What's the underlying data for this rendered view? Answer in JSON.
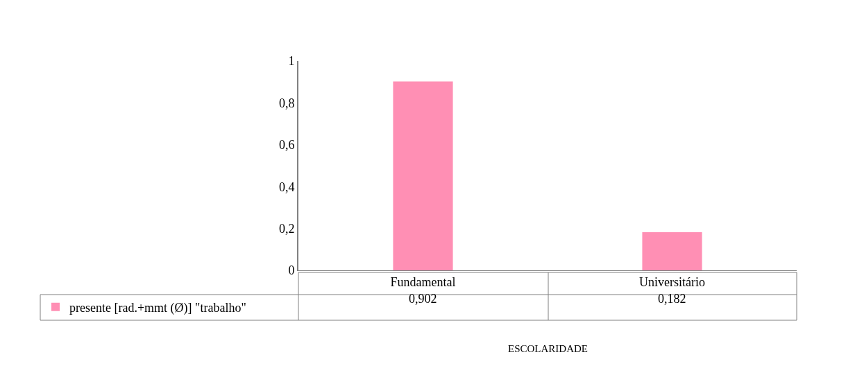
{
  "chart_data": {
    "type": "bar",
    "annotations": [
      "ESCOLARIDADE"
    ],
    "categories": [
      "Fundamental",
      "Universitário"
    ],
    "series": [
      {
        "name": "presente [rad.+mmt (Ø)] \"trabalho\"",
        "color": "#ff8fb4",
        "values": [
          0.902,
          0.182
        ],
        "value_labels": [
          "0,902",
          "0,182"
        ]
      }
    ],
    "ylim": [
      0,
      1
    ],
    "yticks": [
      0,
      {
        "value": 0.2,
        "label": "0,2"
      },
      {
        "value": 0.4,
        "label": "0,4"
      },
      {
        "value": 0.6,
        "label": "0,6"
      },
      {
        "value": 0.8,
        "label": "0,8"
      },
      1
    ],
    "legend": "bottom left"
  }
}
